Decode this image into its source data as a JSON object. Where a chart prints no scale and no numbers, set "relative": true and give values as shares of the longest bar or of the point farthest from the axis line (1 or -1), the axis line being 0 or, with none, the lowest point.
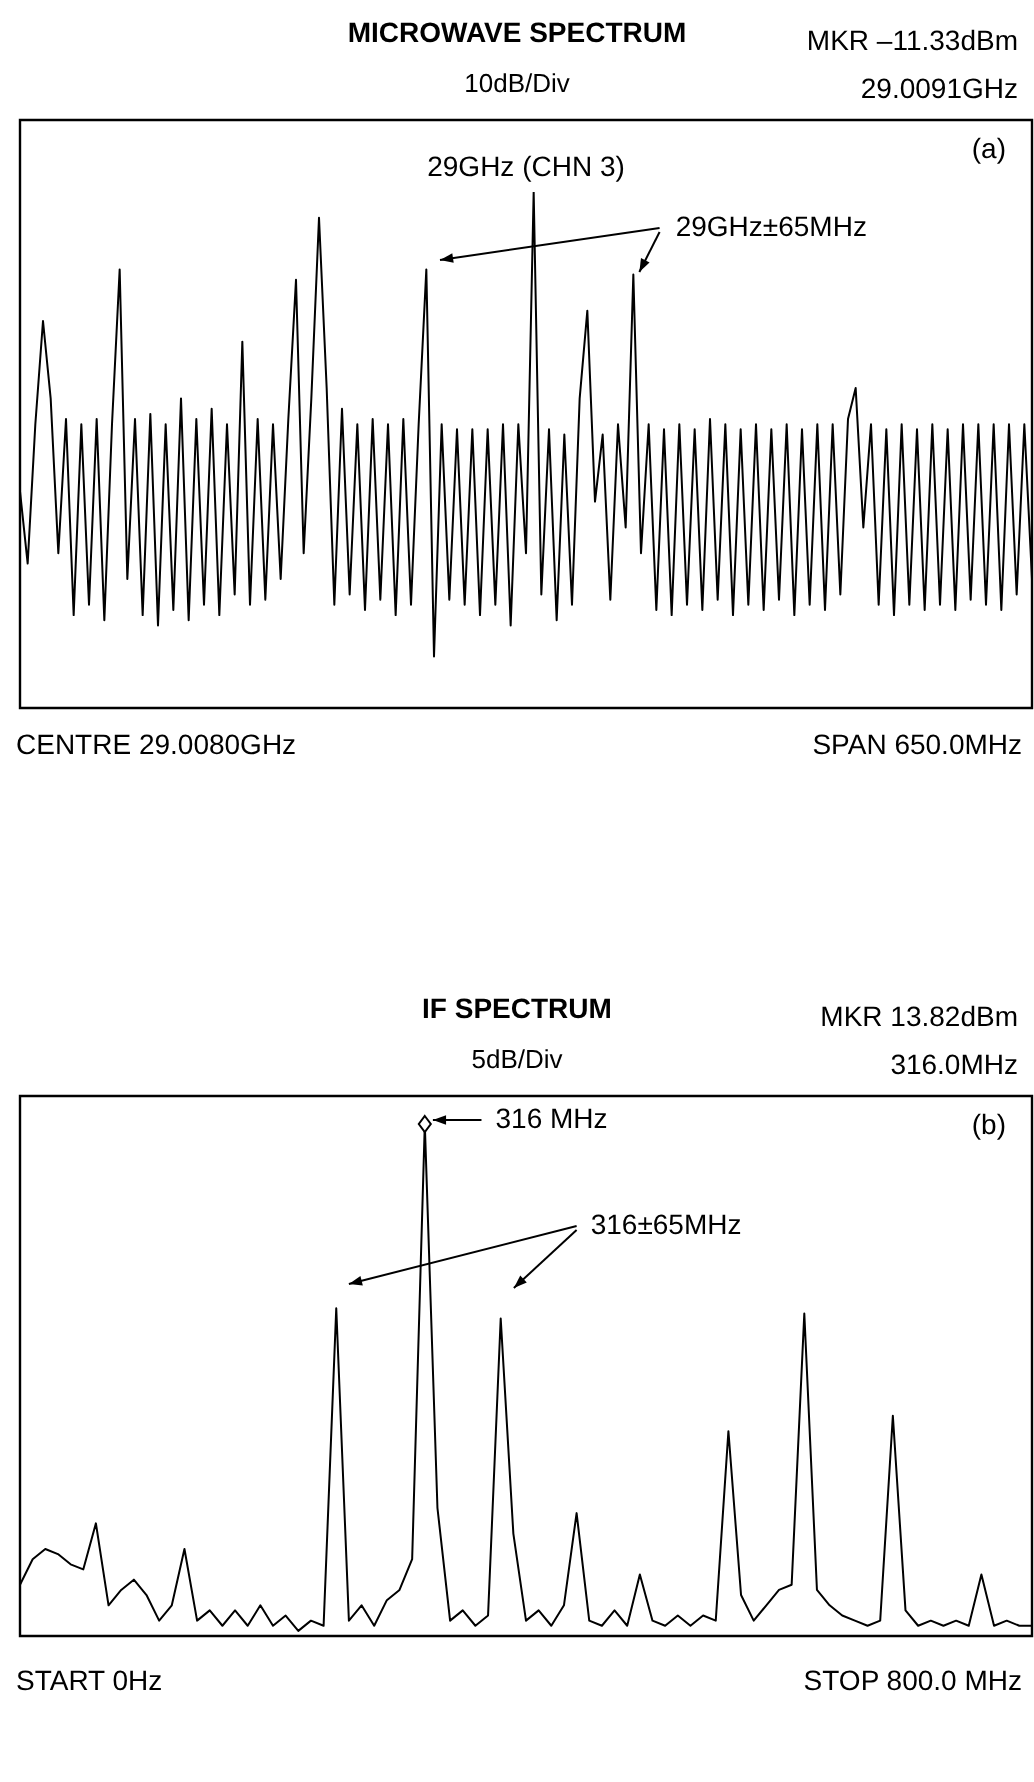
{
  "chart_data": [
    {
      "type": "line",
      "title": "MICROWAVE SPECTRUM",
      "subtitle": "10dB/Div",
      "relative": true,
      "legend": false,
      "categories": [
        null,
        null,
        null,
        null,
        null,
        null,
        null,
        null,
        null,
        null,
        null,
        null,
        null,
        null,
        null,
        null,
        null,
        null,
        null,
        null,
        null,
        null,
        null,
        null,
        null,
        null,
        null,
        null,
        null,
        null,
        null,
        null,
        null,
        null,
        null,
        null,
        null,
        null,
        null,
        null,
        null,
        null,
        null,
        null,
        null,
        null,
        null,
        null,
        null,
        null,
        null,
        null,
        null,
        null,
        null,
        null,
        null,
        null,
        null,
        null,
        null,
        null,
        null,
        null,
        null,
        null,
        null,
        null,
        null,
        null,
        null,
        null,
        null,
        null,
        null,
        null,
        null,
        null,
        null,
        null,
        null,
        null,
        null,
        null,
        null,
        null,
        null,
        null,
        null,
        null,
        null,
        null,
        null,
        null,
        null,
        null,
        null,
        null,
        null,
        null,
        null,
        null,
        null,
        null,
        null,
        null,
        null,
        null,
        null,
        null,
        null,
        null,
        null,
        null,
        null,
        null,
        null,
        null,
        null,
        null,
        null,
        null,
        null,
        null,
        null,
        null,
        null,
        null,
        null,
        null,
        null,
        null,
        null
      ],
      "series": [
        {
          "color": "#000000",
          "values": [
            0.42,
            0.28,
            0.55,
            0.75,
            0.6,
            0.3,
            0.56,
            0.18,
            0.55,
            0.2,
            0.56,
            0.17,
            0.55,
            0.85,
            0.25,
            0.56,
            0.18,
            0.57,
            0.16,
            0.55,
            0.19,
            0.6,
            0.17,
            0.56,
            0.2,
            0.58,
            0.18,
            0.55,
            0.22,
            0.71,
            0.2,
            0.56,
            0.21,
            0.55,
            0.25,
            0.56,
            0.83,
            0.3,
            0.6,
            0.95,
            0.62,
            0.2,
            0.58,
            0.22,
            0.55,
            0.19,
            0.56,
            0.21,
            0.55,
            0.18,
            0.56,
            0.2,
            0.55,
            0.85,
            0.1,
            0.55,
            0.21,
            0.54,
            0.2,
            0.54,
            0.18,
            0.54,
            0.2,
            0.55,
            0.16,
            0.55,
            0.3,
            1.0,
            0.22,
            0.54,
            0.17,
            0.53,
            0.2,
            0.6,
            0.77,
            0.4,
            0.53,
            0.21,
            0.55,
            0.35,
            0.84,
            0.3,
            0.55,
            0.19,
            0.54,
            0.18,
            0.55,
            0.2,
            0.54,
            0.19,
            0.56,
            0.21,
            0.55,
            0.18,
            0.54,
            0.2,
            0.55,
            0.19,
            0.54,
            0.21,
            0.55,
            0.18,
            0.54,
            0.2,
            0.55,
            0.19,
            0.55,
            0.22,
            0.56,
            0.62,
            0.35,
            0.55,
            0.2,
            0.54,
            0.18,
            0.55,
            0.2,
            0.54,
            0.19,
            0.55,
            0.2,
            0.54,
            0.19,
            0.55,
            0.21,
            0.55,
            0.2,
            0.55,
            0.19,
            0.55,
            0.22,
            0.55,
            0.25
          ]
        }
      ],
      "annotations": [
        "MKR –11.33dBm",
        "29.0091GHz",
        "(a)",
        "CENTRE 29.0080GHz",
        "SPAN 650.0MHz",
        "29GHz (CHN 3)",
        "29GHz±65MHz"
      ]
    },
    {
      "type": "line",
      "title": "IF SPECTRUM",
      "subtitle": "5dB/Div",
      "relative": true,
      "legend": false,
      "categories": [
        null,
        null,
        null,
        null,
        null,
        null,
        null,
        null,
        null,
        null,
        null,
        null,
        null,
        null,
        null,
        null,
        null,
        null,
        null,
        null,
        null,
        null,
        null,
        null,
        null,
        null,
        null,
        null,
        null,
        null,
        null,
        null,
        null,
        null,
        null,
        null,
        null,
        null,
        null,
        null,
        null,
        null,
        null,
        null,
        null,
        null,
        null,
        null,
        null,
        null,
        null,
        null,
        null,
        null,
        null,
        null,
        null,
        null,
        null,
        null,
        null,
        null,
        null,
        null,
        null,
        null,
        null,
        null,
        null,
        null,
        null,
        null,
        null,
        null,
        null,
        null,
        null,
        null,
        null,
        null,
        null
      ],
      "series": [
        {
          "color": "#000000",
          "values": [
            0.1,
            0.15,
            0.17,
            0.16,
            0.14,
            0.13,
            0.22,
            0.06,
            0.09,
            0.11,
            0.08,
            0.03,
            0.06,
            0.17,
            0.03,
            0.05,
            0.02,
            0.05,
            0.02,
            0.06,
            0.02,
            0.04,
            0.01,
            0.03,
            0.02,
            0.64,
            0.03,
            0.06,
            0.02,
            0.07,
            0.09,
            0.15,
            1.0,
            0.25,
            0.03,
            0.05,
            0.02,
            0.04,
            0.62,
            0.2,
            0.03,
            0.05,
            0.02,
            0.06,
            0.24,
            0.03,
            0.02,
            0.05,
            0.02,
            0.12,
            0.03,
            0.02,
            0.04,
            0.02,
            0.04,
            0.03,
            0.4,
            0.08,
            0.03,
            0.06,
            0.09,
            0.1,
            0.63,
            0.09,
            0.06,
            0.04,
            0.03,
            0.02,
            0.03,
            0.43,
            0.05,
            0.02,
            0.03,
            0.02,
            0.03,
            0.02,
            0.12,
            0.02,
            0.03,
            0.02,
            0.02
          ]
        }
      ],
      "annotations": [
        "MKR 13.82dBm",
        "316.0MHz",
        "(b)",
        "START 0Hz",
        "STOP 800.0 MHz",
        "316 MHz",
        "316±65MHz"
      ]
    }
  ]
}
